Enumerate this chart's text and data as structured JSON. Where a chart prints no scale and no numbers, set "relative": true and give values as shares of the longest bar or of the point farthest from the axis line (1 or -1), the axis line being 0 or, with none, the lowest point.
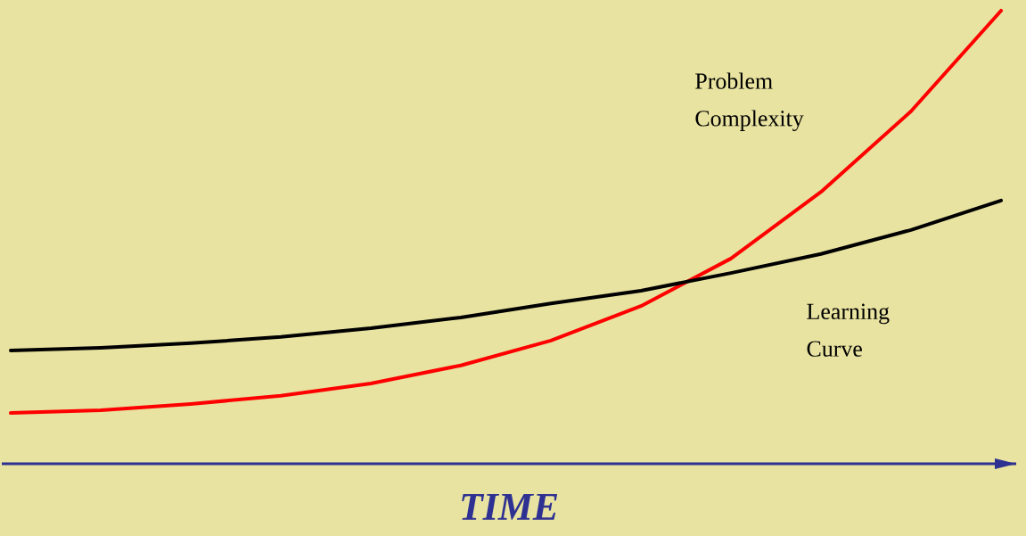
{
  "chart_data": {
    "type": "line",
    "relative": true,
    "xlabel": "TIME",
    "marker": "none",
    "line_style": "solid",
    "categories": [
      null,
      null,
      null,
      null,
      null,
      null,
      null,
      null,
      null,
      null,
      null,
      null
    ],
    "series": [
      {
        "name": "Problem Complexity",
        "color": "#ff0000",
        "values": [
          0.112,
          0.118,
          0.132,
          0.15,
          0.177,
          0.217,
          0.272,
          0.348,
          0.453,
          0.6,
          0.778,
          1
        ]
      },
      {
        "name": "Learning Curve",
        "color": "#000000",
        "values": [
          0.25,
          0.256,
          0.266,
          0.28,
          0.299,
          0.323,
          0.354,
          0.382,
          0.421,
          0.463,
          0.516,
          0.581
        ]
      }
    ]
  }
}
